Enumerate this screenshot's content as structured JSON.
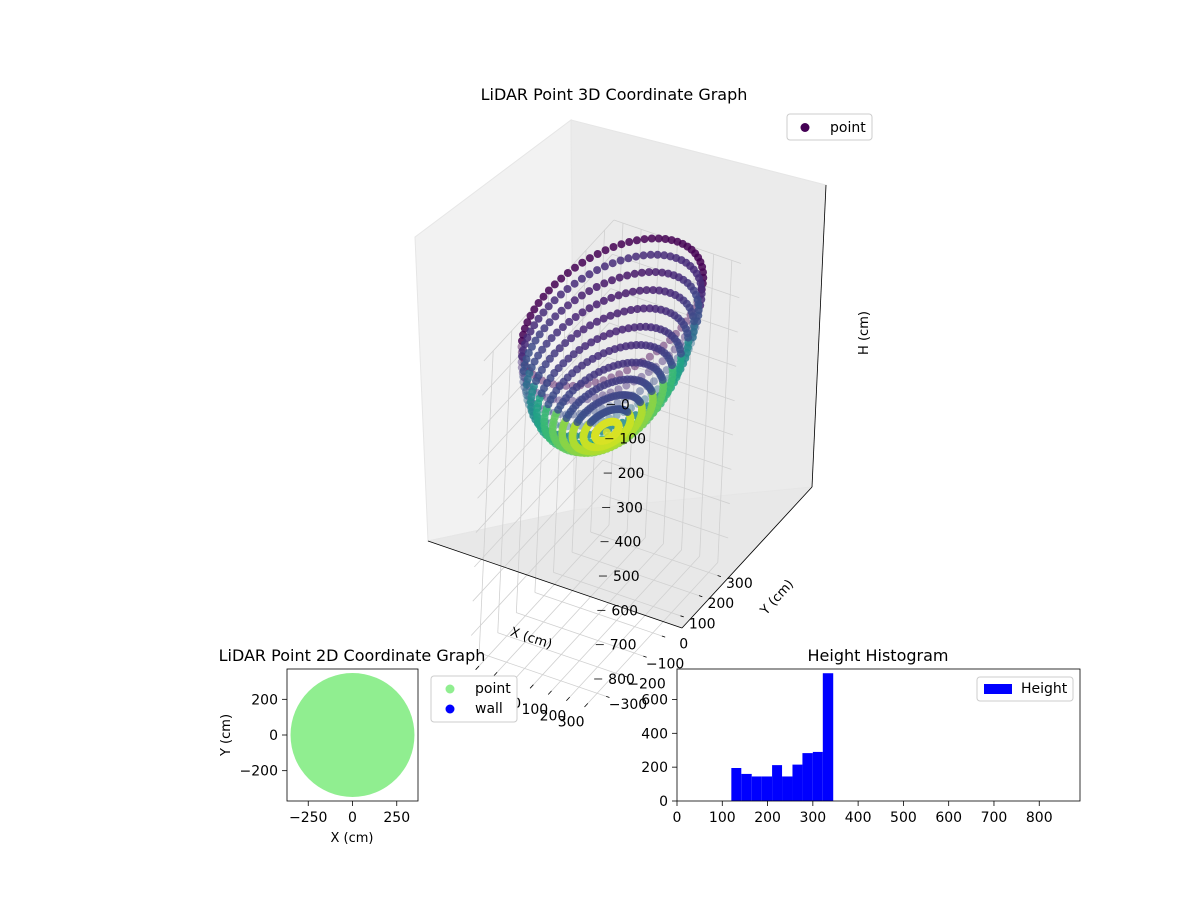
{
  "chart_data": [
    {
      "type": "scatter3d",
      "title": "LiDAR Point 3D Coordinate Graph",
      "xlabel": "X (cm)",
      "ylabel": "Y (cm)",
      "zlabel": "H (cm)",
      "xticks": [
        "−300",
        "−200",
        "−100",
        "0",
        "100",
        "200",
        "300"
      ],
      "yticks": [
        "−300",
        "−200",
        "−100",
        "0",
        "100",
        "200",
        "300"
      ],
      "zticks": [
        "0",
        "100",
        "200",
        "300",
        "400",
        "500",
        "600",
        "700",
        "800"
      ],
      "xlim": [
        -350,
        350
      ],
      "ylim": [
        -350,
        350
      ],
      "zlim": [
        0,
        880
      ],
      "z_inverted": true,
      "series": [
        {
          "name": "point",
          "shape": "hemispherical bowl",
          "radius": 350,
          "rim_height": 0,
          "bottom_height": 350,
          "azimuth_steps": 72,
          "rings": 12,
          "colormap": "viridis",
          "legend_color": "#440154"
        }
      ],
      "legend": "top-right",
      "grid": true
    },
    {
      "type": "scatter",
      "title": "LiDAR Point 2D Coordinate Graph",
      "xlabel": "X (cm)",
      "ylabel": "Y (cm)",
      "xticks": [
        "−250",
        "0",
        "250"
      ],
      "yticks": [
        "200",
        "0",
        "−200"
      ],
      "xlim": [
        -370,
        370
      ],
      "ylim": [
        -370,
        370
      ],
      "series": [
        {
          "name": "point",
          "color": "#90ee90",
          "shape": "filled disk",
          "radius": 350
        },
        {
          "name": "wall",
          "color": "#0000ff"
        }
      ],
      "legend": "outside-right"
    },
    {
      "type": "bar",
      "title": "Height Histogram",
      "xticks": [
        "0",
        "100",
        "200",
        "300",
        "400",
        "500",
        "600",
        "700",
        "800"
      ],
      "yticks": [
        "0",
        "200",
        "400",
        "600"
      ],
      "xlim": [
        0,
        890
      ],
      "ylim": [
        0,
        780
      ],
      "bins": [
        {
          "x0": 120,
          "x1": 142,
          "value": 195
        },
        {
          "x0": 142,
          "x1": 165,
          "value": 160
        },
        {
          "x0": 165,
          "x1": 187,
          "value": 145
        },
        {
          "x0": 187,
          "x1": 210,
          "value": 145
        },
        {
          "x0": 210,
          "x1": 232,
          "value": 212
        },
        {
          "x0": 232,
          "x1": 255,
          "value": 145
        },
        {
          "x0": 255,
          "x1": 277,
          "value": 215
        },
        {
          "x0": 277,
          "x1": 300,
          "value": 283
        },
        {
          "x0": 300,
          "x1": 322,
          "value": 290
        },
        {
          "x0": 322,
          "x1": 345,
          "value": 755
        }
      ],
      "series": [
        {
          "name": "Height",
          "color": "#0000ff"
        }
      ],
      "legend": "top-right"
    }
  ]
}
